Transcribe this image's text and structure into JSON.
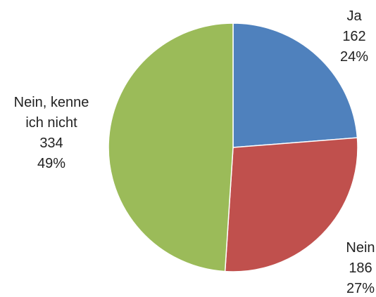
{
  "chart_data": {
    "type": "pie",
    "categories": [
      "Ja",
      "Nein",
      "Nein, kenne ich nicht"
    ],
    "values": [
      162,
      186,
      334
    ],
    "percentages": [
      "24%",
      "27%",
      "49%"
    ],
    "slices": [
      {
        "label_lines": [
          "Ja"
        ],
        "value": "162",
        "percent": "24%",
        "color": "#4F81BD"
      },
      {
        "label_lines": [
          "Nein"
        ],
        "value": "186",
        "percent": "27%",
        "color": "#C0504D"
      },
      {
        "label_lines": [
          "Nein, kenne",
          "ich nicht"
        ],
        "value": "334",
        "percent": "49%",
        "color": "#9BBB59"
      }
    ],
    "start_angle": "12 o'clock",
    "direction": "clockwise",
    "legend": "none"
  }
}
